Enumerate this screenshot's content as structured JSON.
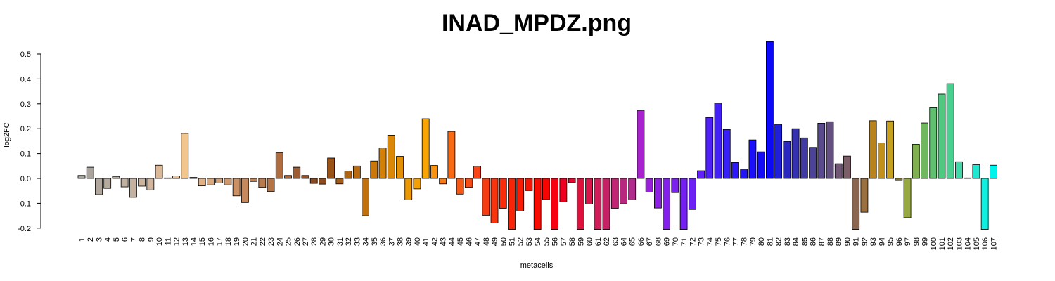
{
  "chart_data": {
    "type": "bar",
    "title": "INAD_MPDZ.png",
    "xlabel": "metacells",
    "ylabel": "log2FC",
    "categories": [
      "1",
      "2",
      "3",
      "4",
      "5",
      "6",
      "7",
      "8",
      "9",
      "10",
      "11",
      "12",
      "13",
      "14",
      "15",
      "16",
      "17",
      "18",
      "19",
      "20",
      "21",
      "22",
      "23",
      "24",
      "25",
      "26",
      "27",
      "28",
      "29",
      "30",
      "31",
      "32",
      "33",
      "34",
      "35",
      "36",
      "37",
      "38",
      "39",
      "40",
      "41",
      "42",
      "43",
      "44",
      "45",
      "46",
      "47",
      "48",
      "49",
      "50",
      "51",
      "52",
      "53",
      "54",
      "55",
      "56",
      "57",
      "58",
      "59",
      "60",
      "61",
      "62",
      "63",
      "64",
      "65",
      "66",
      "67",
      "68",
      "69",
      "70",
      "71",
      "72",
      "73",
      "74",
      "75",
      "76",
      "77",
      "78",
      "79",
      "80",
      "81",
      "82",
      "83",
      "84",
      "85",
      "86",
      "87",
      "88",
      "89",
      "90",
      "91",
      "92",
      "93",
      "94",
      "95",
      "96",
      "97",
      "98",
      "99",
      "100",
      "101",
      "102",
      "103",
      "104",
      "105",
      "106",
      "107"
    ],
    "values": [
      0.012,
      0.045,
      -0.065,
      -0.04,
      0.008,
      -0.034,
      -0.076,
      -0.031,
      -0.046,
      0.053,
      0.002,
      0.01,
      0.181,
      0.004,
      -0.03,
      -0.026,
      -0.018,
      -0.026,
      -0.07,
      -0.097,
      -0.012,
      -0.036,
      -0.053,
      0.104,
      0.012,
      0.045,
      0.012,
      -0.02,
      -0.023,
      0.082,
      -0.022,
      0.03,
      0.05,
      -0.15,
      0.07,
      0.123,
      0.174,
      0.089,
      -0.086,
      -0.042,
      0.24,
      0.052,
      -0.022,
      0.189,
      -0.063,
      -0.036,
      0.049,
      -0.148,
      -0.179,
      -0.12,
      -0.205,
      -0.131,
      -0.049,
      -0.205,
      -0.085,
      -0.205,
      -0.094,
      -0.017,
      -0.205,
      -0.103,
      -0.205,
      -0.205,
      -0.12,
      -0.102,
      -0.086,
      0.274,
      -0.055,
      -0.119,
      -0.205,
      -0.057,
      -0.205,
      -0.125,
      0.031,
      0.245,
      0.303,
      0.197,
      0.064,
      0.038,
      0.155,
      0.107,
      0.55,
      0.218,
      0.149,
      0.2,
      0.163,
      0.125,
      0.222,
      0.228,
      0.059,
      0.09,
      -0.205,
      -0.136,
      0.232,
      0.143,
      0.231,
      -0.006,
      -0.158,
      0.137,
      0.223,
      0.284,
      0.339,
      0.381,
      0.067,
      0.002,
      0.055,
      -0.205,
      0.053
    ],
    "colors": [
      "#a9a59e",
      "#aaa49d",
      "#b0a79c",
      "#b4aa9d",
      "#bbad9e",
      "#c0b09f",
      "#c5b19f",
      "#cbb39e",
      "#d2b59e",
      "#dab898",
      "#e4bc94",
      "#eec08e",
      "#f2c58c",
      "#eab98a",
      "#e2b083",
      "#dca87b",
      "#d6a073",
      "#d0986c",
      "#cb9164",
      "#c5895d",
      "#bf8255",
      "#b97b4e",
      "#b47447",
      "#ae6c3f",
      "#a66438",
      "#9d5d31",
      "#92522a",
      "#8a4b22",
      "#8e4c1c",
      "#9a5317",
      "#a55b14",
      "#b06311",
      "#b96a0e",
      "#c2700c",
      "#ca780a",
      "#d28008",
      "#da8806",
      "#e29005",
      "#ea9804",
      "#f2a003",
      "#f8a402",
      "#f89010",
      "#f87a12",
      "#f86914",
      "#f85815",
      "#f84c16",
      "#f84417",
      "#f83c12",
      "#f8340e",
      "#f82c0a",
      "#f82407",
      "#f81c05",
      "#f81403",
      "#f80c02",
      "#f80501",
      "#f80010",
      "#f00020",
      "#e8082f",
      "#e0103d",
      "#d8164a",
      "#d01c58",
      "#c82065",
      "#c02472",
      "#b8287e",
      "#b02c8c",
      "#a822d0",
      "#9a20dc",
      "#8e20e4",
      "#8420ec",
      "#7c20f0",
      "#7420f2",
      "#6c20f4",
      "#6020f6",
      "#5020f8",
      "#4420f8",
      "#3820f8",
      "#2c18f8",
      "#2414f8",
      "#1c10f8",
      "#140cf8",
      "#0c08f8",
      "#2020d8",
      "#2a28c0",
      "#3430b0",
      "#403aa4",
      "#4c4298",
      "#584a8c",
      "#645080",
      "#705874",
      "#7c5e68",
      "#8a6550",
      "#9a7040",
      "#b8821c",
      "#c0901a",
      "#c8a020",
      "#b0a030",
      "#98a840",
      "#80b050",
      "#70b860",
      "#60c070",
      "#50c880",
      "#48d090",
      "#40d8a8",
      "#30e0c0",
      "#20e8d0",
      "#10f0e0",
      "#00f4ec"
    ],
    "ylim": [
      -0.22,
      0.57
    ],
    "yticks": [
      -0.2,
      -0.1,
      {
        "value": 0,
        "label": "0.0"
      },
      0.1,
      0.2,
      0.3,
      0.4,
      0.5
    ]
  }
}
